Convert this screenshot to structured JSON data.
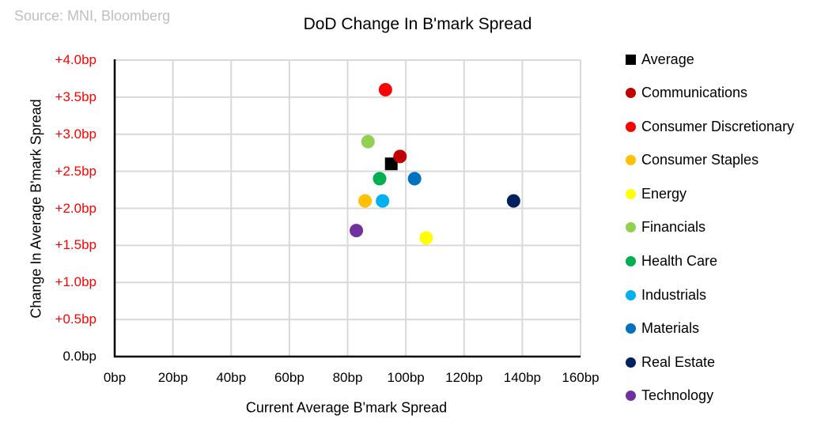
{
  "source_note": "Source: MNI, Bloomberg",
  "colors": {
    "tick_label_red": "#FF0000",
    "axis_black": "#000000",
    "gridline_gray": "#D9D9D9",
    "source_gray": "#BFBFBF",
    "background": "#FFFFFF"
  },
  "chart_data": {
    "type": "scatter",
    "title": "DoD Change In B'mark Spread",
    "xlabel": "Current Average B'mark Spread",
    "ylabel": "Change In Average B'mark Spread",
    "xlim": [
      0,
      160
    ],
    "ylim": [
      0.0,
      4.0
    ],
    "grid": true,
    "legend_position": "right",
    "x_ticks": [
      {
        "value": 0,
        "label": "0bp"
      },
      {
        "value": 20,
        "label": "20bp"
      },
      {
        "value": 40,
        "label": "40bp"
      },
      {
        "value": 60,
        "label": "60bp"
      },
      {
        "value": 80,
        "label": "80bp"
      },
      {
        "value": 100,
        "label": "100bp"
      },
      {
        "value": 120,
        "label": "120bp"
      },
      {
        "value": 140,
        "label": "140bp"
      },
      {
        "value": 160,
        "label": "160bp"
      }
    ],
    "y_ticks": [
      {
        "value": 4.0,
        "label": "+4.0bp",
        "color": "#FF0000"
      },
      {
        "value": 3.5,
        "label": "+3.5bp",
        "color": "#FF0000"
      },
      {
        "value": 3.0,
        "label": "+3.0bp",
        "color": "#FF0000"
      },
      {
        "value": 2.5,
        "label": "+2.5bp",
        "color": "#FF0000"
      },
      {
        "value": 2.0,
        "label": "+2.0bp",
        "color": "#FF0000"
      },
      {
        "value": 1.5,
        "label": "+1.5bp",
        "color": "#FF0000"
      },
      {
        "value": 1.0,
        "label": "+1.0bp",
        "color": "#FF0000"
      },
      {
        "value": 0.5,
        "label": "+0.5bp",
        "color": "#FF0000"
      },
      {
        "value": 0.0,
        "label": "0.0bp",
        "color": "#000000"
      }
    ],
    "series": [
      {
        "name": "Average",
        "marker": "square",
        "color": "#000000",
        "x": 95,
        "y": 2.6
      },
      {
        "name": "Communications",
        "marker": "circle",
        "color": "#C00000",
        "x": 98,
        "y": 2.7
      },
      {
        "name": "Consumer Discretionary",
        "marker": "circle",
        "color": "#FF0000",
        "x": 93,
        "y": 3.6
      },
      {
        "name": "Consumer Staples",
        "marker": "circle",
        "color": "#FFC000",
        "x": 86,
        "y": 2.1
      },
      {
        "name": "Energy",
        "marker": "circle",
        "color": "#FFFF00",
        "x": 107,
        "y": 1.6
      },
      {
        "name": "Financials",
        "marker": "circle",
        "color": "#92D050",
        "x": 87,
        "y": 2.9
      },
      {
        "name": "Health Care",
        "marker": "circle",
        "color": "#00B050",
        "x": 91,
        "y": 2.4
      },
      {
        "name": "Industrials",
        "marker": "circle",
        "color": "#00B0F0",
        "x": 92,
        "y": 2.1
      },
      {
        "name": "Materials",
        "marker": "circle",
        "color": "#0070C0",
        "x": 103,
        "y": 2.4
      },
      {
        "name": "Real Estate",
        "marker": "circle",
        "color": "#002060",
        "x": 137,
        "y": 2.1
      },
      {
        "name": "Technology",
        "marker": "circle",
        "color": "#7030A0",
        "x": 83,
        "y": 1.7
      }
    ]
  }
}
